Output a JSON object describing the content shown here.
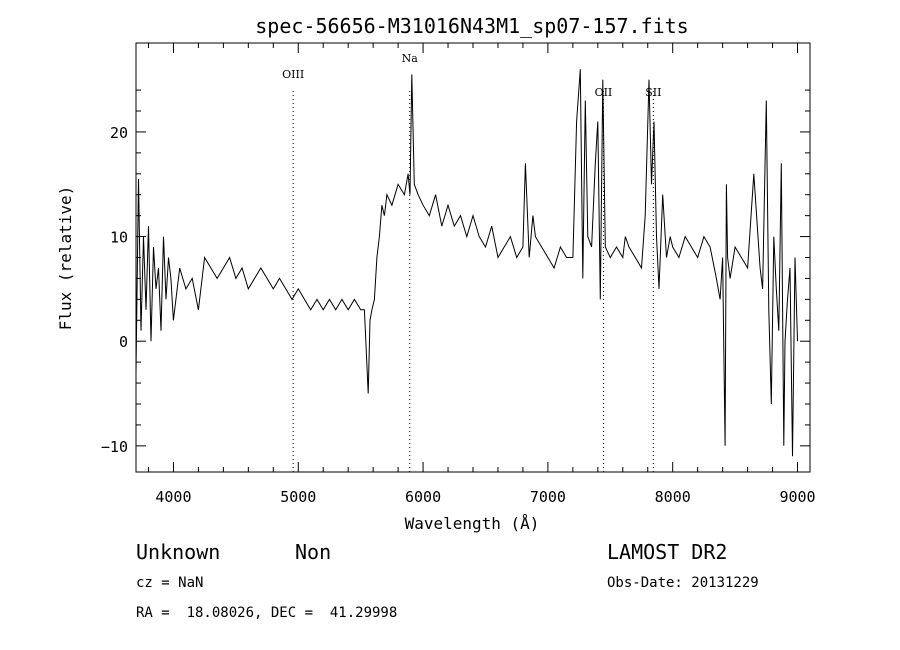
{
  "chart_data": {
    "type": "line",
    "title": "spec-56656-M31016N43M1_sp07-157.fits",
    "xlabel": "Wavelength (Å)",
    "ylabel": "Flux (relative)",
    "xlim": [
      3700,
      9100
    ],
    "ylim": [
      -12.5,
      28.5
    ],
    "xticks": [
      4000,
      5000,
      6000,
      7000,
      8000,
      9000
    ],
    "yticks": [
      -10,
      0,
      10,
      20
    ],
    "grid": false,
    "series": [
      {
        "x": [
          3700,
          3720,
          3740,
          3760,
          3780,
          3800,
          3820,
          3840,
          3860,
          3880,
          3900,
          3920,
          3940,
          3960,
          3980,
          4000,
          4050,
          4100,
          4150,
          4200,
          4250,
          4300,
          4350,
          4400,
          4450,
          4500,
          4550,
          4600,
          4650,
          4700,
          4750,
          4800,
          4850,
          4900,
          4950,
          5000,
          5050,
          5100,
          5150,
          5200,
          5250,
          5300,
          5350,
          5400,
          5450,
          5500,
          5530,
          5560,
          5575,
          5590,
          5610,
          5630,
          5650,
          5670,
          5690,
          5710,
          5750,
          5800,
          5850,
          5880,
          5895,
          5910,
          5930,
          5960,
          6000,
          6050,
          6100,
          6150,
          6200,
          6250,
          6300,
          6350,
          6400,
          6450,
          6500,
          6550,
          6600,
          6650,
          6700,
          6750,
          6800,
          6820,
          6850,
          6880,
          6900,
          6950,
          7000,
          7050,
          7100,
          7150,
          7200,
          7230,
          7260,
          7280,
          7300,
          7320,
          7350,
          7380,
          7400,
          7420,
          7440,
          7460,
          7500,
          7550,
          7600,
          7620,
          7650,
          7700,
          7750,
          7780,
          7810,
          7830,
          7850,
          7870,
          7890,
          7920,
          7950,
          7980,
          8000,
          8050,
          8100,
          8150,
          8200,
          8250,
          8300,
          8350,
          8380,
          8400,
          8420,
          8430,
          8440,
          8460,
          8500,
          8550,
          8600,
          8650,
          8700,
          8720,
          8750,
          8770,
          8790,
          8810,
          8830,
          8850,
          8870,
          8890,
          8900,
          8920,
          8940,
          8960,
          8980,
          9000
        ],
        "y": [
          -3,
          15.5,
          1,
          10,
          3,
          11,
          0,
          9,
          5,
          7,
          1,
          10,
          4,
          8,
          6,
          2,
          7,
          5,
          6,
          3,
          8,
          7,
          6,
          7,
          8,
          6,
          7,
          5,
          6,
          7,
          6,
          5,
          6,
          5,
          4,
          5,
          4,
          3,
          4,
          3,
          4,
          3,
          4,
          3,
          4,
          3,
          3,
          -5,
          2,
          3,
          4,
          8,
          10,
          13,
          12,
          14,
          13,
          15,
          14,
          16,
          14,
          25.5,
          15,
          14,
          13,
          12,
          14,
          11,
          13,
          11,
          12,
          10,
          12,
          10,
          9,
          11,
          8,
          9,
          10,
          8,
          9,
          17,
          8,
          12,
          10,
          9,
          8,
          7,
          9,
          8,
          8,
          21,
          26,
          6,
          23,
          10,
          9,
          17,
          21,
          4,
          25,
          9,
          8,
          9,
          8,
          10,
          9,
          8,
          7,
          12,
          25,
          15,
          21,
          10,
          5,
          14,
          8,
          10,
          9,
          8,
          10,
          9,
          8,
          10,
          9,
          6,
          4,
          8,
          -10,
          15,
          8,
          6,
          9,
          8,
          7,
          16,
          7,
          5,
          23,
          3,
          -6,
          10,
          5,
          1,
          17,
          -10,
          0,
          4,
          7,
          -11,
          8,
          0
        ]
      }
    ],
    "lines": [
      {
        "label": "OIII",
        "x": 4959
      },
      {
        "label": "Na",
        "x": 5893
      },
      {
        "label": "OII",
        "x": 7445
      },
      {
        "label": "SII",
        "x": 7845
      }
    ]
  },
  "info": {
    "class": "Unknown",
    "subclass": "Non",
    "survey": "LAMOST DR2",
    "cz": "cz = NaN",
    "obs_date": "Obs-Date: 20131229",
    "radec": "RA =  18.08026, DEC =  41.29998"
  }
}
